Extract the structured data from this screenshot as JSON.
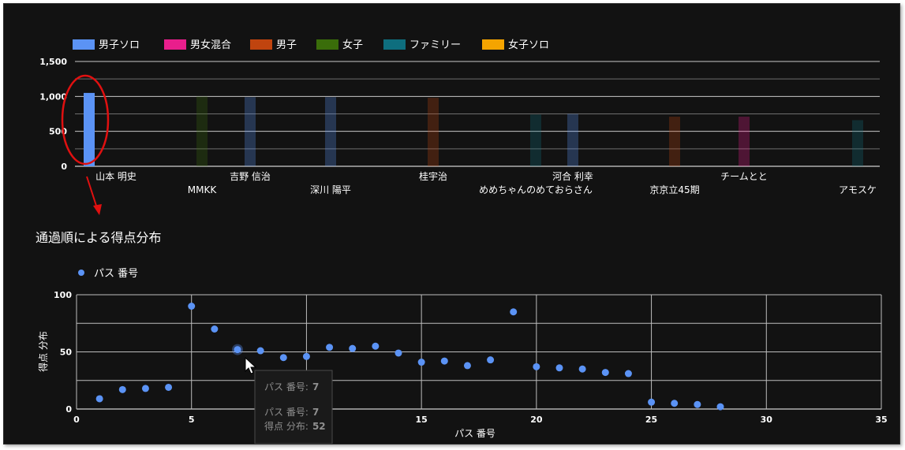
{
  "chart_data": [
    {
      "type": "bar",
      "legend": [
        "男子ソロ",
        "男女混合",
        "男子",
        "女子",
        "ファミリー",
        "女子ソロ"
      ],
      "legend_colors": [
        "#5b93f5",
        "#e91e8c",
        "#c0440f",
        "#3a6d0a",
        "#0e6e7e",
        "#f5a400"
      ],
      "yticks": [
        "1,500",
        "1,000",
        "500",
        "0"
      ],
      "ylim": [
        0,
        1500
      ],
      "grid": true,
      "legend_position": "top-left",
      "categories": [
        "山本 明史",
        "MMKK",
        "吉野 信治",
        "深川 陽平",
        "桂宇治",
        "めめちゃんのめておらさん",
        "河合 利幸",
        "京京立45期",
        "チームとと",
        "アモスケ"
      ],
      "series": [
        {
          "name": "男子ソロ",
          "values": [
            1050,
            null,
            990,
            990,
            null,
            null,
            750,
            null,
            null,
            null
          ]
        },
        {
          "name": "男女混合",
          "values": [
            null,
            null,
            null,
            null,
            null,
            null,
            null,
            null,
            710,
            null
          ]
        },
        {
          "name": "男子",
          "values": [
            null,
            null,
            null,
            null,
            980,
            null,
            null,
            710,
            null,
            null
          ]
        },
        {
          "name": "女子",
          "values": [
            null,
            1000,
            null,
            null,
            null,
            null,
            null,
            null,
            null,
            null
          ]
        },
        {
          "name": "ファミリー",
          "values": [
            null,
            null,
            null,
            null,
            null,
            740,
            null,
            null,
            null,
            660
          ]
        }
      ]
    },
    {
      "type": "scatter",
      "title": "通過順による得点分布",
      "xlabel": "パス 番号",
      "ylabel": "得点 分布",
      "legend": "パス 番号",
      "xlim": [
        0,
        35
      ],
      "ylim": [
        0,
        100
      ],
      "xticks": [
        "0",
        "5",
        "10",
        "15",
        "20",
        "25",
        "30",
        "35"
      ],
      "yticks": [
        "100",
        "50",
        "0"
      ],
      "grid": true,
      "legend_position": "top-left",
      "point_color": "#5b93f5",
      "x": [
        1,
        2,
        3,
        4,
        5,
        6,
        7,
        8,
        9,
        10,
        11,
        12,
        13,
        14,
        15,
        16,
        17,
        18,
        19,
        20,
        21,
        22,
        23,
        24,
        25,
        26,
        27,
        28
      ],
      "y": [
        9,
        17,
        18,
        19,
        90,
        70,
        52,
        51,
        45,
        46,
        54,
        53,
        55,
        49,
        41,
        42,
        38,
        43,
        85,
        37,
        36,
        35,
        32,
        31,
        6,
        5,
        4,
        2
      ],
      "tooltip": {
        "line1_label": "パス 番号:",
        "line1_value": "7",
        "line2_label": "パス 番号:",
        "line2_value": "7",
        "line3_label": "得点 分布:",
        "line3_value": "52"
      }
    }
  ],
  "annotation": {
    "color": "#e01010"
  }
}
